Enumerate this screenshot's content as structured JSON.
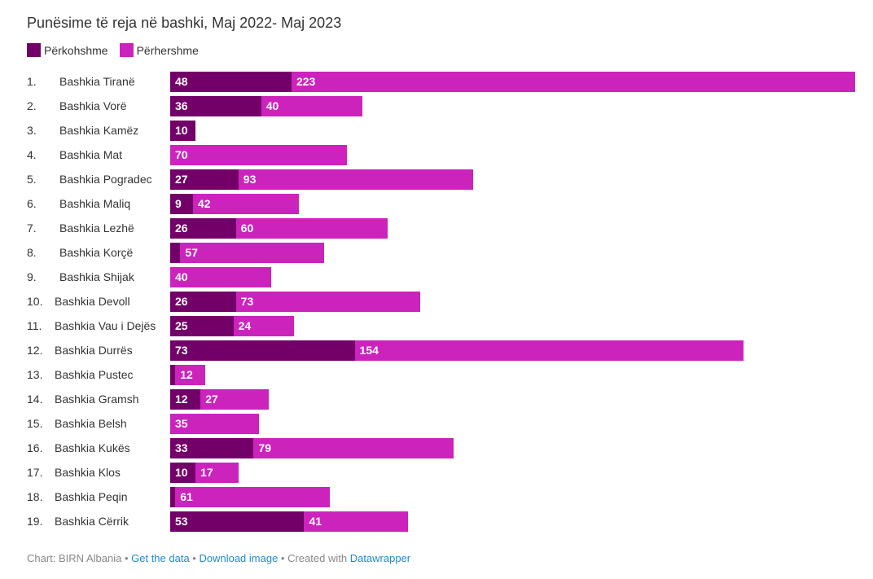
{
  "chart_data": {
    "type": "bar",
    "stacked": true,
    "orientation": "horizontal",
    "title": "Punësime të reja në bashki, Maj 2022- Maj 2023",
    "legend_position": "top-left",
    "series_colors": [
      "#730068",
      "#cc23bd"
    ],
    "series": [
      {
        "name": "Përkohshme",
        "values": [
          48,
          36,
          10,
          0,
          27,
          9,
          26,
          4,
          0,
          26,
          25,
          73,
          2,
          12,
          0,
          33,
          10,
          2,
          53
        ]
      },
      {
        "name": "Përhershme",
        "values": [
          223,
          40,
          0,
          70,
          93,
          42,
          60,
          57,
          40,
          73,
          24,
          154,
          12,
          27,
          35,
          79,
          17,
          61,
          41
        ]
      }
    ],
    "ranks": [
      "1.",
      "2.",
      "3.",
      "4.",
      "5.",
      "6.",
      "7.",
      "8.",
      "9.",
      "10.",
      "11.",
      "12.",
      "13.",
      "14.",
      "15.",
      "16.",
      "17.",
      "18.",
      "19."
    ],
    "categories": [
      "Bashkia Tiranë",
      "Bashkia Vorë",
      "Bashkia Kamëz",
      "Bashkia Mat",
      "Bashkia Pogradec",
      "Bashkia Maliq",
      "Bashkia Lezhë",
      "Bashkia Korçë",
      "Bashkia Shijak",
      "Bashkia Devoll",
      "Bashkia Vau i Dejës",
      "Bashkia Durrës",
      "Bashkia Pustec",
      "Bashkia Gramsh",
      "Bashkia Belsh",
      "Bashkia Kukës",
      "Bashkia Klos",
      "Bashkia Peqin",
      "Bashkia Cërrik"
    ],
    "xlim": [
      0,
      271
    ]
  },
  "footer": {
    "source": "Chart: BIRN Albania",
    "sep": " • ",
    "get_data": "Get the data",
    "download": "Download image",
    "created": "Created with",
    "datawrapper": "Datawrapper"
  }
}
